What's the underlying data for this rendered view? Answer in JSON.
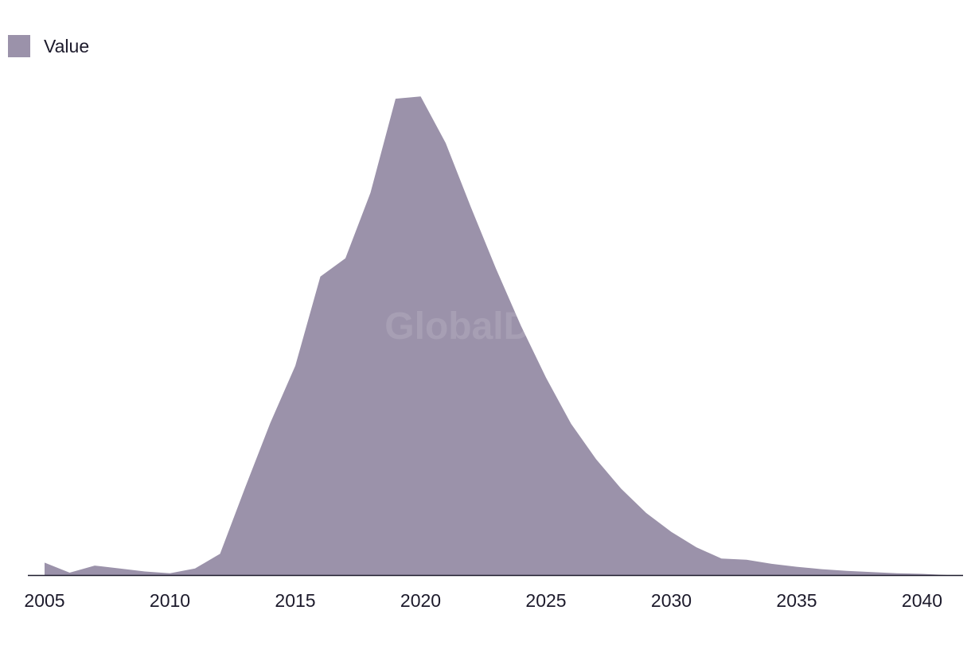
{
  "chart_data": {
    "type": "area",
    "title": "",
    "xlabel": "",
    "ylabel": "",
    "legend": {
      "placement": "top-left",
      "entries": [
        "Value"
      ]
    },
    "grid": false,
    "xlim": [
      2005,
      2041
    ],
    "ylim": [
      0,
      100
    ],
    "x_ticks": [
      2005,
      2010,
      2015,
      2020,
      2025,
      2030,
      2035,
      2040
    ],
    "series": [
      {
        "name": "Value",
        "color": "#9b92aa",
        "x": [
          2005,
          2006,
          2007,
          2008,
          2009,
          2010,
          2011,
          2012,
          2013,
          2014,
          2015,
          2016,
          2017,
          2018,
          2019,
          2020,
          2021,
          2022,
          2023,
          2024,
          2025,
          2026,
          2027,
          2028,
          2029,
          2030,
          2031,
          2032,
          2033,
          2034,
          2035,
          2036,
          2037,
          2038,
          2039,
          2040,
          2041
        ],
        "values": [
          2.1,
          0.4,
          1.6,
          1.1,
          0.6,
          0.3,
          1.1,
          3.6,
          14.8,
          25.7,
          35.4,
          50.5,
          53.6,
          64.7,
          80.6,
          81.0,
          73.1,
          62.3,
          51.9,
          42.2,
          33.4,
          25.6,
          19.6,
          14.6,
          10.5,
          7.3,
          4.7,
          2.8,
          2.6,
          1.9,
          1.4,
          1.0,
          0.7,
          0.5,
          0.3,
          0.2,
          0.0
        ]
      }
    ],
    "watermark": "GlobalData"
  }
}
